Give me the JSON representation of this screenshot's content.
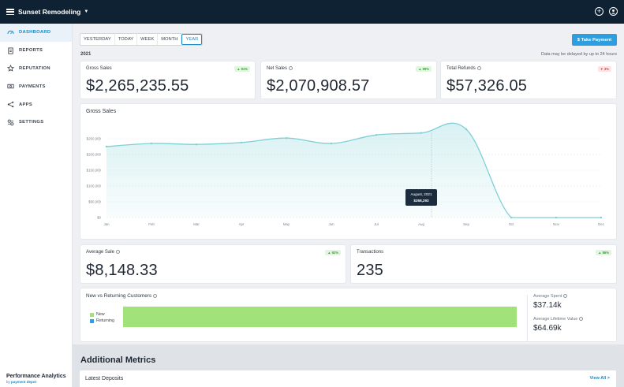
{
  "app": {
    "title": "Sunset Remodeling"
  },
  "sidebar": {
    "items": [
      {
        "label": "DASHBOARD",
        "icon": "dashboard-icon",
        "active": true
      },
      {
        "label": "REPORTS",
        "icon": "reports-icon"
      },
      {
        "label": "REPUTATION",
        "icon": "star-icon"
      },
      {
        "label": "PAYMENTS",
        "icon": "payments-icon"
      },
      {
        "label": "APPS",
        "icon": "apps-icon"
      },
      {
        "label": "SETTINGS",
        "icon": "settings-icon"
      }
    ],
    "footer_title": "Performance Analytics",
    "footer_by": "by",
    "footer_brand": "payment depot"
  },
  "toolbar": {
    "tabs": [
      "YESTERDAY",
      "TODAY",
      "WEEK",
      "MONTH",
      "YEAR"
    ],
    "active_tab": "YEAR",
    "take_payment_label": "$ Take Payment"
  },
  "period": {
    "year": "2021",
    "delay_note": "Data may be delayed by up to 24 hours"
  },
  "kpis": {
    "gross_sales": {
      "label": "Gross Sales",
      "value": "$2,265,235.55",
      "badge": "▲ 91%"
    },
    "net_sales": {
      "label": "Net Sales",
      "value": "$2,070,908.57",
      "badge": "▲ 99%"
    },
    "total_refunds": {
      "label": "Total Refunds",
      "value": "$57,326.05",
      "badge": "▼ 3%"
    },
    "average_sale": {
      "label": "Average Sale",
      "value": "$8,148.33",
      "badge": "▲ 92%"
    },
    "transactions": {
      "label": "Transactions",
      "value": "235",
      "badge": "▲ 86%"
    }
  },
  "chart_data": {
    "type": "area",
    "title": "Gross Sales",
    "categories": [
      "Jan",
      "Feb",
      "Mar",
      "Apr",
      "May",
      "Jun",
      "Jul",
      "Aug",
      "Sep",
      "Oct",
      "Nov",
      "Dec"
    ],
    "series": [
      {
        "values": [
          225000,
          235000,
          232000,
          238000,
          252000,
          235000,
          262000,
          268293,
          280000,
          0,
          0,
          0
        ]
      }
    ],
    "y_ticks": [
      "$0",
      "$50,000",
      "$100,000",
      "$150,000",
      "$200,000",
      "$250,000"
    ],
    "ylim": [
      0,
      300000
    ],
    "grid": true,
    "color": "#7fd0d6",
    "tooltip": {
      "label": "August, 2021",
      "value": "$268,293"
    }
  },
  "customers": {
    "title": "New vs Returning Customers",
    "legend": [
      {
        "label": "New",
        "color": "#a1e27a"
      },
      {
        "label": "Returning",
        "color": "#2d9fe0"
      }
    ],
    "new_share": 1.0,
    "average_spent_label": "Average Spent",
    "average_spent": "$37.14k",
    "lifetime_label": "Average Lifetime Value",
    "lifetime_value": "$64.69k"
  },
  "additional": {
    "title": "Additional Metrics",
    "deposits_title": "Latest Deposits",
    "view_all": "View All >"
  }
}
